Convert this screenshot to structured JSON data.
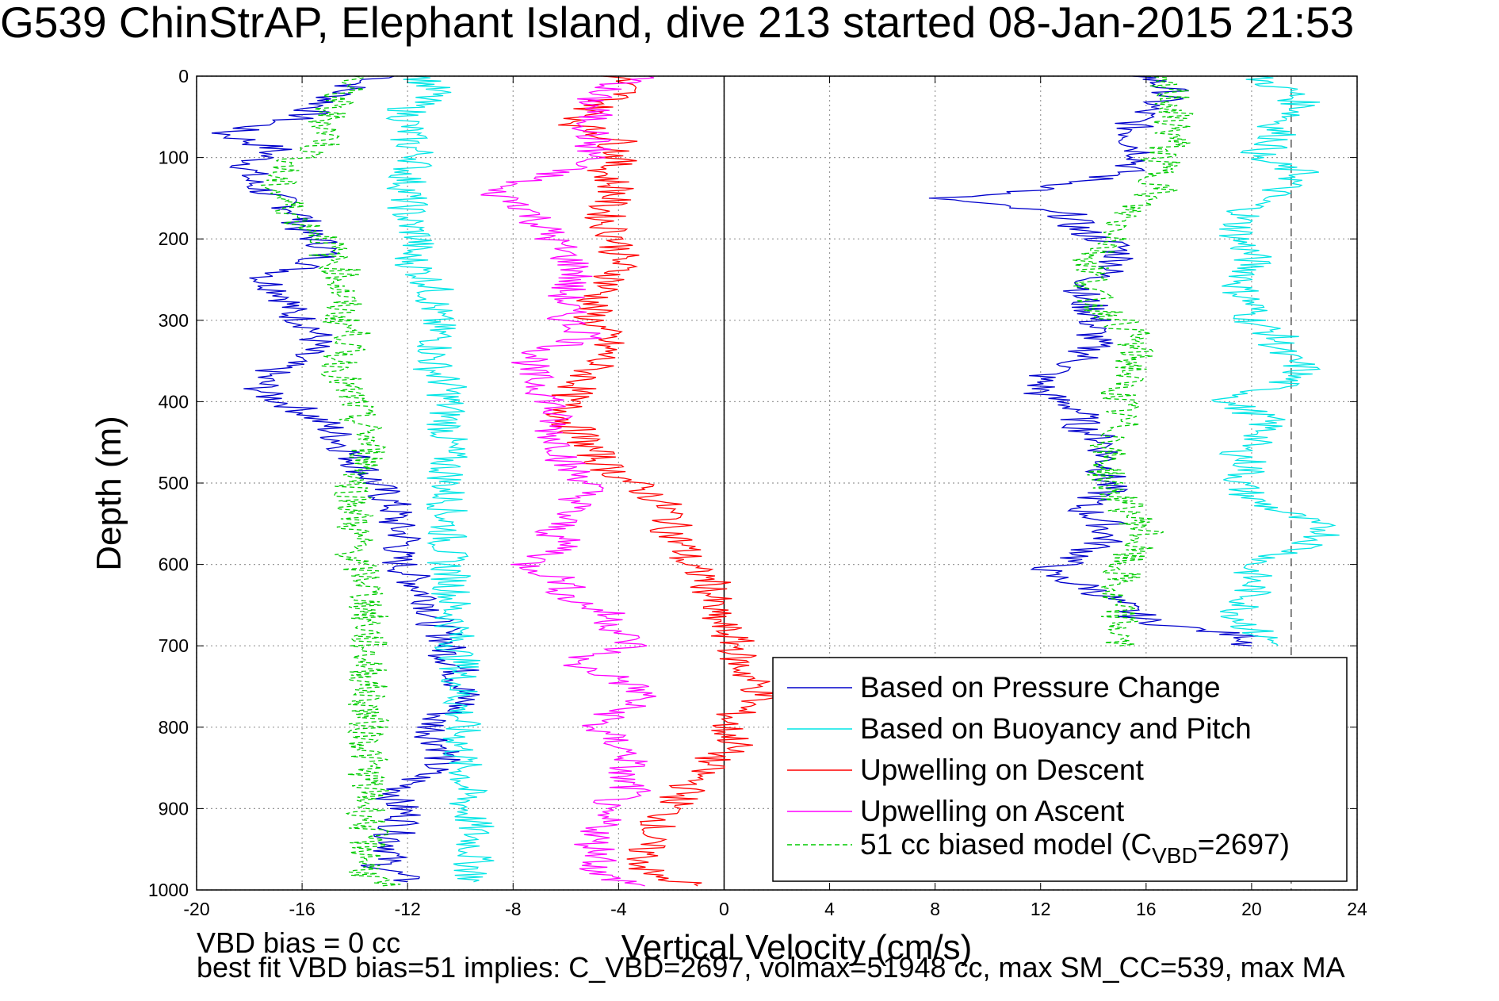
{
  "chart_data": {
    "type": "line",
    "title": "G539 ChinStrAP, Elephant Island, dive 213 started 08-Jan-2015 21:53",
    "xlabel": "Vertical Velocity (cm/s)",
    "ylabel": "Depth (m)",
    "xlim": [
      -20,
      24
    ],
    "ylim": [
      0,
      1000
    ],
    "y_reversed": true,
    "grid": true,
    "legend_placement": "bottom-right",
    "x_ticks": [
      "-20",
      "-16",
      "-12",
      "-8",
      "-4",
      "0",
      "4",
      "8",
      "12",
      "16",
      "20",
      "24"
    ],
    "y_ticks": [
      "0",
      "100",
      "200",
      "300",
      "400",
      "500",
      "600",
      "700",
      "800",
      "900",
      "1000"
    ],
    "reference_lines": [
      {
        "axis": "x",
        "value": 0,
        "style": "solid",
        "color": "#000000"
      },
      {
        "axis": "x",
        "value": 21.5,
        "style": "dashed",
        "color": "#555555"
      }
    ],
    "series": [
      {
        "name": "Based on Pressure Change",
        "color": "#0000cc",
        "style": "solid",
        "phase": "descent",
        "depth": [
          0,
          10,
          30,
          50,
          70,
          90,
          110,
          130,
          150,
          170,
          190,
          210,
          230,
          250,
          270,
          290,
          310,
          330,
          350,
          370,
          390,
          410,
          430,
          450,
          470,
          490,
          510,
          530,
          550,
          570,
          590,
          610,
          630,
          650,
          670,
          690,
          710,
          730,
          750,
          770,
          790,
          810,
          830,
          850,
          870,
          890,
          910,
          930,
          950,
          970,
          990
        ],
        "values": [
          -12.5,
          -14,
          -15,
          -16,
          -19,
          -17,
          -18,
          -18,
          -17,
          -16,
          -16,
          -15,
          -15.5,
          -17.5,
          -16.5,
          -16.5,
          -15.5,
          -15.5,
          -16.5,
          -17.5,
          -17.5,
          -16,
          -15,
          -14.5,
          -14,
          -13.5,
          -13,
          -12.5,
          -12.5,
          -12,
          -12.5,
          -12,
          -11.5,
          -11,
          -11,
          -10.5,
          -10.5,
          -10,
          -10,
          -9.8,
          -11,
          -11,
          -10.5,
          -11,
          -12,
          -12.5,
          -12,
          -12.5,
          -12.5,
          -13,
          -12
        ]
      },
      {
        "name": "",
        "color": "#0000cc",
        "style": "solid",
        "phase": "ascent",
        "depth": [
          0,
          20,
          40,
          60,
          80,
          100,
          120,
          140,
          150,
          170,
          190,
          210,
          230,
          250,
          270,
          290,
          310,
          330,
          350,
          370,
          390,
          410,
          430,
          450,
          470,
          490,
          510,
          530,
          550,
          570,
          590,
          610,
          630,
          650,
          670,
          690,
          700
        ],
        "values": [
          16,
          17,
          16,
          15.5,
          15.5,
          16,
          15,
          12,
          8,
          13,
          13.5,
          15,
          15,
          14,
          13.5,
          14,
          14,
          14,
          13.5,
          12,
          12,
          13.5,
          13.5,
          14.5,
          14.5,
          14.5,
          14.5,
          13.5,
          14.5,
          14.5,
          13.5,
          12,
          14,
          15,
          16,
          20,
          20
        ]
      },
      {
        "name": "Based on Buoyancy and Pitch",
        "color": "#00e5e5",
        "style": "solid",
        "phase": "descent",
        "depth": [
          0,
          20,
          40,
          60,
          80,
          100,
          120,
          140,
          160,
          180,
          200,
          220,
          240,
          260,
          280,
          300,
          320,
          340,
          360,
          380,
          400,
          420,
          440,
          460,
          480,
          500,
          520,
          540,
          560,
          580,
          600,
          620,
          640,
          660,
          680,
          700,
          720,
          740,
          760,
          780,
          800,
          820,
          840,
          860,
          880,
          900,
          920,
          940,
          960,
          980,
          990
        ],
        "values": [
          -11.5,
          -11,
          -12,
          -12,
          -12,
          -11.5,
          -12,
          -12,
          -12,
          -12,
          -11.5,
          -12,
          -11.5,
          -11,
          -11,
          -11,
          -10.8,
          -11,
          -11,
          -10.5,
          -10.5,
          -10.5,
          -10.5,
          -10.5,
          -10.5,
          -10.5,
          -10.5,
          -10.5,
          -10.5,
          -10.5,
          -10.5,
          -10.3,
          -10.3,
          -10.3,
          -10.2,
          -10.2,
          -10,
          -10,
          -10,
          -10,
          -10,
          -10,
          -10,
          -9.8,
          -9.8,
          -9.8,
          -9.5,
          -9.5,
          -9.5,
          -9.5,
          -9.5
        ]
      },
      {
        "name": "",
        "color": "#00e5e5",
        "style": "solid",
        "phase": "ascent",
        "depth": [
          0,
          20,
          40,
          60,
          80,
          100,
          120,
          140,
          160,
          180,
          200,
          220,
          240,
          260,
          280,
          300,
          320,
          340,
          360,
          380,
          400,
          420,
          440,
          460,
          480,
          500,
          520,
          540,
          560,
          580,
          600,
          620,
          640,
          660,
          680,
          700
        ],
        "values": [
          20,
          21.5,
          22,
          21,
          21,
          20,
          22,
          21,
          20,
          19.5,
          19.5,
          20,
          20,
          19.5,
          20,
          20,
          21,
          21,
          22,
          21,
          19,
          20.5,
          20.5,
          19.5,
          20,
          19.5,
          20,
          21.5,
          23,
          22,
          20,
          20,
          20,
          19.5,
          20,
          21
        ]
      },
      {
        "name": "Upwelling on Descent",
        "color": "#ff0000",
        "style": "solid",
        "phase": "descent",
        "depth": [
          0,
          20,
          40,
          60,
          80,
          100,
          120,
          140,
          160,
          180,
          200,
          220,
          240,
          260,
          280,
          300,
          320,
          340,
          360,
          380,
          400,
          420,
          440,
          460,
          480,
          500,
          520,
          540,
          560,
          580,
          600,
          620,
          640,
          660,
          680,
          700,
          720,
          740,
          760,
          780,
          800,
          820,
          840,
          860,
          880,
          900,
          920,
          940,
          960,
          980,
          995
        ],
        "values": [
          -4,
          -3.8,
          -5,
          -5.5,
          -4,
          -4,
          -4.5,
          -4,
          -4.5,
          -4.5,
          -4,
          -4,
          -4,
          -4.5,
          -5,
          -5,
          -4.5,
          -4.5,
          -5,
          -5.5,
          -6,
          -6,
          -5.5,
          -5,
          -4.5,
          -3.5,
          -2.5,
          -2,
          -2,
          -1.5,
          -1.5,
          -0.5,
          -0.5,
          -0.5,
          0,
          0.5,
          0.5,
          1,
          1.5,
          0.5,
          0,
          0.5,
          -0.5,
          -1,
          -1.5,
          -2,
          -2.5,
          -3,
          -3,
          -3,
          -1
        ]
      },
      {
        "name": "Upwelling on Ascent",
        "color": "#ff00ff",
        "style": "solid",
        "phase": "ascent",
        "depth": [
          0,
          20,
          40,
          60,
          80,
          100,
          120,
          140,
          160,
          180,
          200,
          220,
          240,
          260,
          280,
          300,
          320,
          340,
          360,
          380,
          400,
          420,
          440,
          460,
          480,
          500,
          520,
          540,
          560,
          580,
          600,
          620,
          640,
          660,
          680,
          700,
          720,
          740,
          760,
          780,
          800,
          820,
          840,
          860,
          880,
          900,
          920,
          940,
          960,
          980,
          995
        ],
        "values": [
          -3,
          -5,
          -5,
          -5,
          -5,
          -5,
          -6.5,
          -9,
          -7.5,
          -7,
          -6.5,
          -6,
          -5.5,
          -6,
          -6,
          -6,
          -5,
          -7,
          -7.5,
          -7,
          -6.5,
          -6.5,
          -6.5,
          -6,
          -6,
          -5,
          -5.5,
          -6,
          -6.5,
          -6,
          -7.5,
          -6,
          -6,
          -4.5,
          -4,
          -3.5,
          -6,
          -4,
          -3,
          -4,
          -5,
          -4,
          -3.5,
          -4,
          -3.5,
          -5,
          -4.5,
          -5,
          -4.5,
          -5,
          -3
        ]
      },
      {
        "name": "51 cc biased model (C_VBD=2697)",
        "color": "#00cc00",
        "style": "dashed",
        "phase": "descent",
        "depth": [
          0,
          20,
          40,
          60,
          80,
          100,
          120,
          140,
          160,
          180,
          200,
          220,
          240,
          260,
          280,
          300,
          320,
          340,
          360,
          380,
          400,
          420,
          440,
          460,
          480,
          500,
          520,
          540,
          560,
          580,
          600,
          620,
          640,
          660,
          680,
          700,
          720,
          740,
          760,
          780,
          800,
          820,
          840,
          860,
          880,
          900,
          920,
          940,
          960,
          980,
          995
        ],
        "values": [
          -14,
          -14.5,
          -15,
          -15,
          -15,
          -16,
          -17,
          -17,
          -16.5,
          -16,
          -15,
          -15,
          -14.5,
          -14.5,
          -14.5,
          -14.5,
          -14,
          -14.5,
          -14.5,
          -14.5,
          -14,
          -14,
          -13.5,
          -13.5,
          -13.5,
          -14,
          -14,
          -14,
          -14,
          -14,
          -14,
          -13.5,
          -13.5,
          -13.5,
          -13.5,
          -13.5,
          -13.5,
          -13.5,
          -13.5,
          -13.5,
          -13.5,
          -13.5,
          -13.5,
          -13.5,
          -13.5,
          -13.5,
          -13.5,
          -13.5,
          -13.5,
          -13.5,
          -13
        ]
      },
      {
        "name": "",
        "color": "#00cc00",
        "style": "dashed",
        "phase": "ascent",
        "depth": [
          0,
          20,
          40,
          60,
          80,
          100,
          120,
          140,
          160,
          180,
          200,
          220,
          240,
          260,
          280,
          300,
          320,
          340,
          360,
          380,
          400,
          420,
          440,
          460,
          480,
          500,
          520,
          540,
          560,
          580,
          600,
          620,
          640,
          660,
          680,
          700
        ],
        "values": [
          16,
          17,
          17,
          17,
          17,
          16.5,
          16.5,
          16.5,
          15.5,
          15,
          15,
          14,
          14,
          14,
          14,
          15,
          15.5,
          15.5,
          15.5,
          15,
          15,
          15,
          15,
          14.5,
          14.5,
          14.5,
          15,
          15.5,
          16,
          15.5,
          15,
          15,
          14.5,
          15,
          15,
          15
        ]
      }
    ],
    "legend_entries": [
      {
        "label": "Based on Pressure Change",
        "color": "#0000cc",
        "style": "solid"
      },
      {
        "label": "Based on Buoyancy and Pitch",
        "color": "#00e5e5",
        "style": "solid"
      },
      {
        "label": "Upwelling on Descent",
        "color": "#ff0000",
        "style": "solid"
      },
      {
        "label": "Upwelling on Ascent",
        "color": "#ff00ff",
        "style": "solid"
      },
      {
        "label": "51 cc biased model (C",
        "sub": "VBD",
        "suffix": "=2697)",
        "color": "#00cc00",
        "style": "dashed"
      }
    ],
    "annotations": [
      "VBD bias = 0 cc",
      "best fit VBD bias=51 implies: C_VBD=2697, volmax=51948 cc, max SM_CC=539, max MA"
    ]
  }
}
